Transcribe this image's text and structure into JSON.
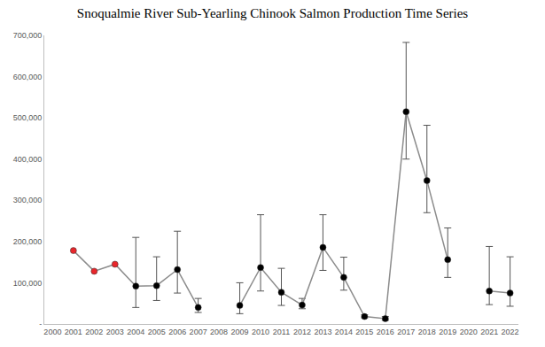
{
  "chart_data": {
    "type": "line",
    "title": "Snoqualmie River Sub-Yearling Chinook Salmon Production Time Series",
    "x": [
      2001,
      2002,
      2003,
      2004,
      2005,
      2006,
      2007,
      2008,
      2009,
      2010,
      2011,
      2012,
      2013,
      2014,
      2015,
      2016,
      2017,
      2018,
      2019,
      2020,
      2021,
      2022
    ],
    "values": [
      178000,
      128000,
      145000,
      92000,
      93000,
      132000,
      40000,
      null,
      45000,
      137000,
      77000,
      46000,
      186000,
      113000,
      18000,
      13000,
      515000,
      348000,
      156000,
      null,
      80000,
      75000
    ],
    "lower": [
      null,
      null,
      null,
      40000,
      57000,
      75000,
      28000,
      null,
      25000,
      80000,
      45000,
      37000,
      130000,
      82000,
      15000,
      9000,
      400000,
      270000,
      113000,
      null,
      47000,
      43000
    ],
    "upper": [
      null,
      null,
      null,
      210000,
      163000,
      225000,
      62000,
      null,
      100000,
      265000,
      135000,
      62000,
      265000,
      162000,
      22000,
      18000,
      683000,
      482000,
      233000,
      null,
      188000,
      163000
    ],
    "colors": [
      "#e8262b",
      "#e8262b",
      "#e8262b",
      "#000000",
      "#000000",
      "#000000",
      "#000000",
      "#000000",
      "#000000",
      "#000000",
      "#000000",
      "#000000",
      "#000000",
      "#000000",
      "#000000",
      "#000000",
      "#000000",
      "#000000",
      "#000000",
      "#000000",
      "#000000",
      "#000000"
    ],
    "color": "#8c8c8c",
    "marker": "circle",
    "xlim": [
      1999.6,
      2022.4
    ],
    "xticks": [
      2000,
      2001,
      2002,
      2003,
      2004,
      2005,
      2006,
      2007,
      2008,
      2009,
      2010,
      2011,
      2012,
      2013,
      2014,
      2015,
      2016,
      2017,
      2018,
      2019,
      2020,
      2021,
      2022
    ],
    "ylim": [
      0,
      700000
    ],
    "yticks": [
      {
        "value": 0,
        "label": "-"
      },
      {
        "value": 100000,
        "label": "100,000"
      },
      {
        "value": 200000,
        "label": "200,000"
      },
      {
        "value": 300000,
        "label": "300,000"
      },
      {
        "value": 400000,
        "label": "400,000"
      },
      {
        "value": 500000,
        "label": "500,000"
      },
      {
        "value": 600000,
        "label": "600,000"
      },
      {
        "value": 700000,
        "label": "700,000"
      }
    ],
    "grid": false
  }
}
